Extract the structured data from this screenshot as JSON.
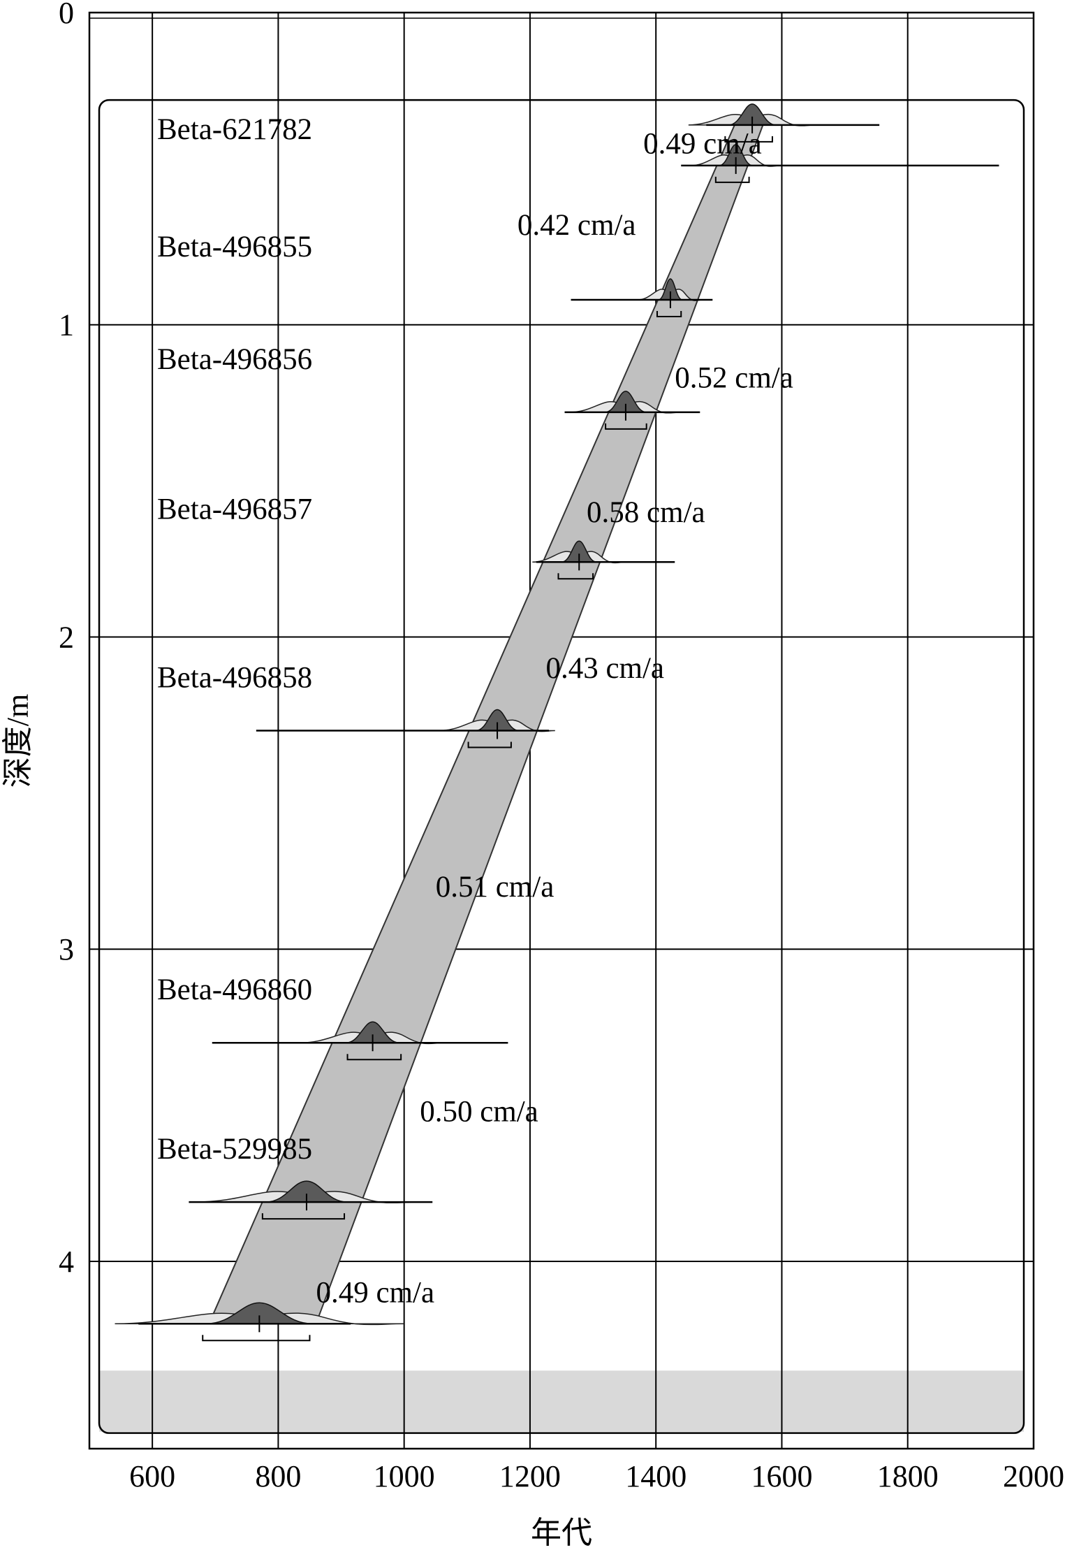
{
  "chart_data": {
    "type": "scatter",
    "title": "",
    "xlabel": "年代",
    "ylabel": "深度/m",
    "xlim": [
      500,
      2000
    ],
    "ylim": [
      0,
      4.6
    ],
    "x_ticks": [
      "600",
      "800",
      "1000",
      "1200",
      "1400",
      "1600",
      "1800",
      "2000"
    ],
    "y_ticks": [
      "0",
      "1",
      "2",
      "3",
      "4"
    ],
    "grid": true,
    "y_inverted": true,
    "samples": [
      {
        "label": "Beta-621782",
        "depth": 0.36,
        "median": 1553,
        "range": [
          1510,
          1585
        ],
        "span": [
          1480,
          1755
        ]
      },
      {
        "label": "",
        "depth": 0.49,
        "median": 1527,
        "range": [
          1495,
          1548
        ],
        "span": [
          1440,
          1945
        ]
      },
      {
        "label": "Beta-496855",
        "depth": 0.92,
        "median": 1423,
        "range": [
          1402,
          1440
        ],
        "span": [
          1265,
          1490
        ]
      },
      {
        "label": "Beta-496856",
        "depth": 1.28,
        "median": 1352,
        "range": [
          1320,
          1385
        ],
        "span": [
          1255,
          1470
        ]
      },
      {
        "label": "Beta-496857",
        "depth": 1.76,
        "median": 1278,
        "range": [
          1245,
          1300
        ],
        "span": [
          1210,
          1430
        ]
      },
      {
        "label": "Beta-496858",
        "depth": 2.3,
        "median": 1148,
        "range": [
          1102,
          1170
        ],
        "span": [
          765,
          1230
        ]
      },
      {
        "label": "Beta-496860",
        "depth": 3.3,
        "median": 950,
        "range": [
          910,
          995
        ],
        "span": [
          695,
          1165
        ]
      },
      {
        "label": "Beta-529985",
        "depth": 3.81,
        "median": 845,
        "range": [
          775,
          905
        ],
        "span": [
          658,
          1045
        ]
      },
      {
        "label": "",
        "depth": 4.2,
        "median": 770,
        "range": [
          680,
          850
        ],
        "span": [
          578,
          915
        ]
      }
    ],
    "age_depth_band": {
      "depth": [
        0.36,
        4.2
      ],
      "left_edge": [
        1525,
        690
      ],
      "right_edge": [
        1570,
        860
      ]
    },
    "sedimentation_rates": [
      {
        "label": "0.49 cm/a",
        "depth": 0.42,
        "x": 1380
      },
      {
        "label": "0.42 cm/a",
        "depth": 0.68,
        "x": 1180
      },
      {
        "label": "0.52 cm/a",
        "depth": 1.17,
        "x": 1430
      },
      {
        "label": "0.58 cm/a",
        "depth": 1.6,
        "x": 1290
      },
      {
        "label": "0.43 cm/a",
        "depth": 2.1,
        "x": 1225
      },
      {
        "label": "0.51 cm/a",
        "depth": 2.8,
        "x": 1050
      },
      {
        "label": "0.50 cm/a",
        "depth": 3.52,
        "x": 1025
      },
      {
        "label": "0.49 cm/a",
        "depth": 4.1,
        "x": 860
      }
    ],
    "bottom_shaded_depth": [
      4.35,
      4.5
    ]
  }
}
